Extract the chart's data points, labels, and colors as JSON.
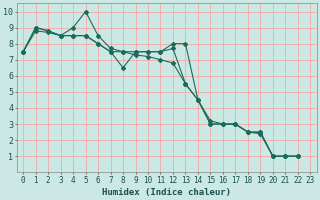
{
  "title": "",
  "xlabel": "Humidex (Indice chaleur)",
  "bg_color": "#cce8e4",
  "grid_color": "#ff9999",
  "line_color": "#1a6b5a",
  "xlim": [
    -0.5,
    23.5
  ],
  "ylim": [
    0,
    10.5
  ],
  "xticks": [
    0,
    1,
    2,
    3,
    4,
    5,
    6,
    7,
    8,
    9,
    10,
    11,
    12,
    13,
    14,
    15,
    16,
    17,
    18,
    19,
    20,
    21,
    22,
    23
  ],
  "yticks": [
    1,
    2,
    3,
    4,
    5,
    6,
    7,
    8,
    9,
    10
  ],
  "series1": [
    7.5,
    9.0,
    8.8,
    8.5,
    9.0,
    10.0,
    8.5,
    7.7,
    7.5,
    7.5,
    7.5,
    7.5,
    7.7,
    5.5,
    4.5,
    3.0,
    3.0,
    3.0,
    2.5,
    2.5,
    1.0,
    1.0,
    1.0
  ],
  "series2": [
    7.5,
    9.0,
    8.8,
    8.5,
    8.5,
    8.5,
    8.0,
    7.5,
    6.5,
    7.5,
    7.5,
    7.5,
    8.0,
    8.0,
    4.5,
    3.0,
    3.0,
    3.0,
    2.5,
    2.5,
    1.0,
    1.0,
    1.0
  ],
  "series3": [
    7.5,
    8.8,
    8.7,
    8.5,
    8.5,
    8.5,
    8.0,
    7.5,
    7.5,
    7.3,
    7.2,
    7.0,
    6.8,
    5.5,
    4.5,
    3.2,
    3.0,
    3.0,
    2.5,
    2.4,
    1.0,
    1.0,
    1.0
  ],
  "tick_color": "#1a5050",
  "tick_fontsize": 5.5,
  "xlabel_fontsize": 6.5
}
